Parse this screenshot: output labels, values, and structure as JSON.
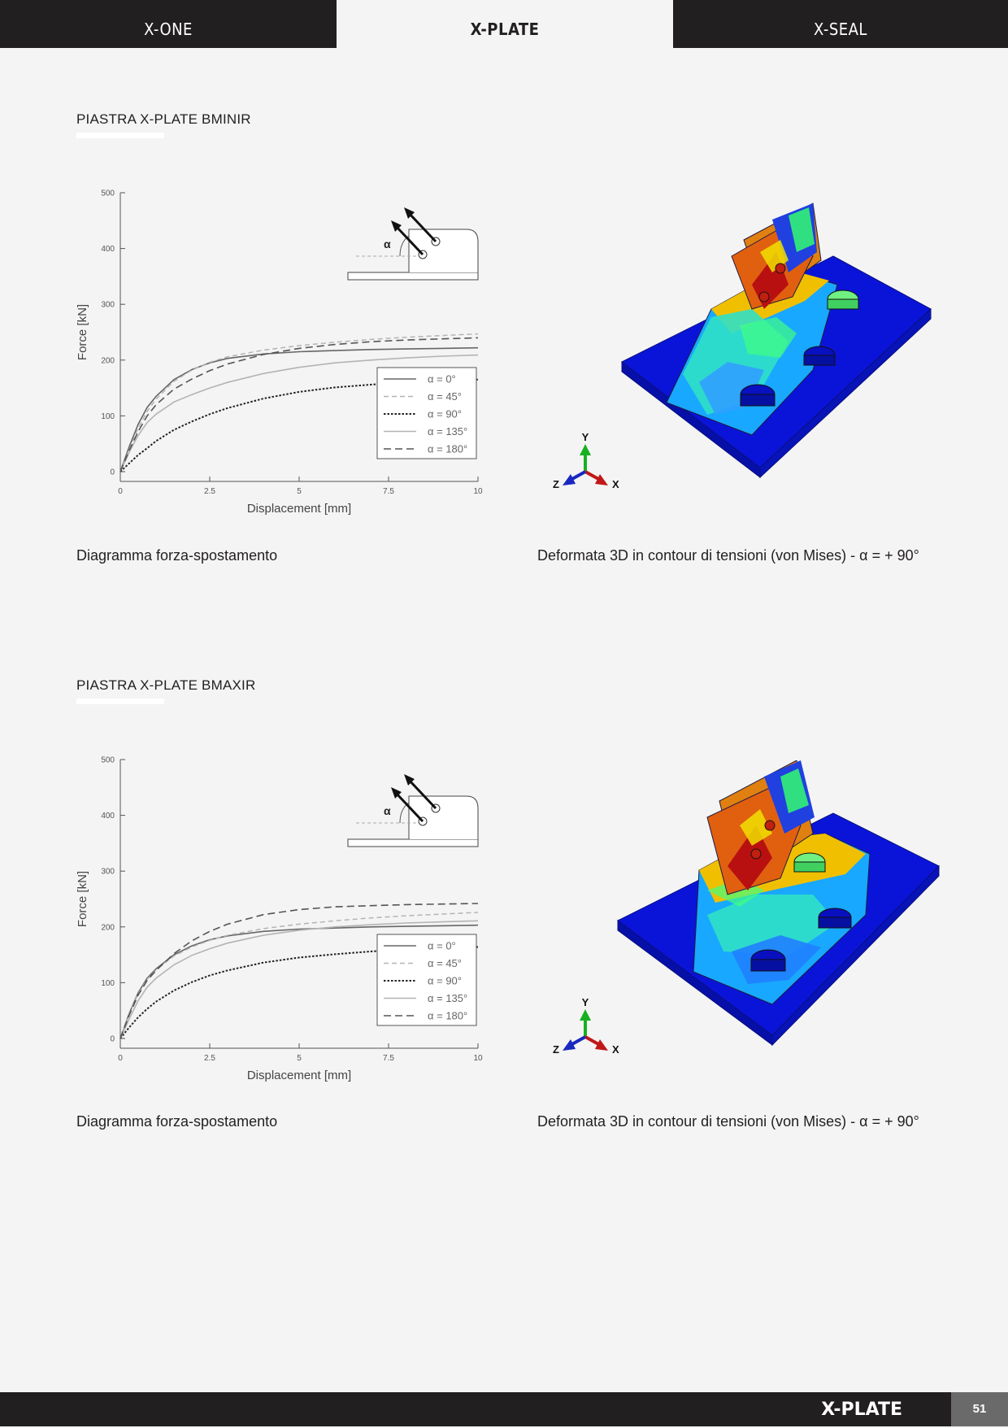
{
  "tabs": [
    {
      "label": "X-ONE",
      "active": false
    },
    {
      "label": "X-PLATE",
      "active": true
    },
    {
      "label": "X-SEAL",
      "active": false
    }
  ],
  "sections": [
    {
      "title": "PIASTRA X-PLATE BMINIR",
      "chart_caption": "Diagramma forza-spostamento",
      "fem_caption": "Deformata 3D in contour di tensioni (von Mises) - α = + 90°",
      "angle_label": "α",
      "axis_letters": {
        "x": "X",
        "y": "Y",
        "z": "Z"
      },
      "chart_data": {
        "type": "line",
        "xlabel": "Displacement [mm]",
        "ylabel": "Force [kN]",
        "xlim": [
          0,
          10
        ],
        "ylim": [
          0,
          500
        ],
        "xticks": [
          "0",
          "2.5",
          "5",
          "7.5",
          "10"
        ],
        "yticks": [
          "0",
          "100",
          "200",
          "300",
          "400",
          "500"
        ],
        "legend_position": "bottom-right",
        "series": [
          {
            "name": "α = 0°",
            "style": "solid-dark",
            "x": [
              0,
              0.25,
              0.5,
              0.75,
              1,
              1.5,
              2,
              2.5,
              3,
              4,
              5,
              6,
              7,
              8,
              9,
              10
            ],
            "y": [
              0,
              45,
              85,
              115,
              135,
              165,
              183,
              195,
              203,
              211,
              215,
              217,
              219,
              220,
              221,
              222
            ]
          },
          {
            "name": "α = 45°",
            "style": "dashed-light",
            "x": [
              0,
              0.25,
              0.5,
              0.75,
              1,
              1.5,
              2,
              2.5,
              3,
              4,
              5,
              6,
              7,
              8,
              9,
              10
            ],
            "y": [
              0,
              40,
              78,
              108,
              130,
              162,
              182,
              196,
              206,
              218,
              226,
              232,
              237,
              241,
              244,
              247
            ]
          },
          {
            "name": "α = 90°",
            "style": "dotted-black",
            "x": [
              0,
              0.25,
              0.5,
              0.75,
              1,
              1.5,
              2,
              2.5,
              3,
              4,
              5,
              6,
              7,
              8,
              9,
              10
            ],
            "y": [
              0,
              15,
              30,
              42,
              55,
              75,
              90,
              103,
              114,
              131,
              143,
              151,
              156,
              160,
              163,
              165
            ]
          },
          {
            "name": "α = 135°",
            "style": "solid-light",
            "x": [
              0,
              0.25,
              0.5,
              0.75,
              1,
              1.5,
              2,
              2.5,
              3,
              4,
              5,
              6,
              7,
              8,
              9,
              10
            ],
            "y": [
              0,
              35,
              65,
              88,
              103,
              125,
              138,
              150,
              160,
              176,
              187,
              195,
              200,
              204,
              207,
              209
            ]
          },
          {
            "name": "α = 180°",
            "style": "dashed-dark",
            "x": [
              0,
              0.25,
              0.5,
              0.75,
              1,
              1.5,
              2,
              2.5,
              3,
              4,
              5,
              6,
              7,
              8,
              9,
              10
            ],
            "y": [
              0,
              38,
              72,
              100,
              120,
              148,
              166,
              181,
              193,
              210,
              221,
              228,
              233,
              236,
              238,
              240
            ]
          }
        ]
      }
    },
    {
      "title": "PIASTRA X-PLATE BMAXIR",
      "chart_caption": "Diagramma forza-spostamento",
      "fem_caption": "Deformata 3D in contour di tensioni (von Mises) - α = + 90°",
      "angle_label": "α",
      "axis_letters": {
        "x": "X",
        "y": "Y",
        "z": "Z"
      },
      "chart_data": {
        "type": "line",
        "xlabel": "Displacement [mm]",
        "ylabel": "Force [kN]",
        "xlim": [
          0,
          10
        ],
        "ylim": [
          0,
          500
        ],
        "xticks": [
          "0",
          "2.5",
          "5",
          "7.5",
          "10"
        ],
        "yticks": [
          "0",
          "100",
          "200",
          "300",
          "400",
          "500"
        ],
        "legend_position": "bottom-right",
        "series": [
          {
            "name": "α = 0°",
            "style": "solid-dark",
            "x": [
              0,
              0.25,
              0.5,
              0.75,
              1,
              1.5,
              2,
              2.5,
              3,
              4,
              5,
              6,
              7,
              8,
              9,
              10
            ],
            "y": [
              0,
              45,
              82,
              108,
              125,
              150,
              166,
              177,
              184,
              192,
              196,
              198,
              200,
              201,
              202,
              203
            ]
          },
          {
            "name": "α = 45°",
            "style": "dashed-light",
            "x": [
              0,
              0.25,
              0.5,
              0.75,
              1,
              1.5,
              2,
              2.5,
              3,
              4,
              5,
              6,
              7,
              8,
              9,
              10
            ],
            "y": [
              0,
              44,
              80,
              106,
              123,
              148,
              164,
              176,
              185,
              197,
              205,
              211,
              216,
              220,
              223,
              226
            ]
          },
          {
            "name": "α = 90°",
            "style": "dotted-black",
            "x": [
              0,
              0.25,
              0.5,
              0.75,
              1,
              1.5,
              2,
              2.5,
              3,
              4,
              5,
              6,
              7,
              8,
              9,
              10
            ],
            "y": [
              0,
              20,
              38,
              53,
              66,
              86,
              101,
              113,
              122,
              136,
              145,
              151,
              156,
              159,
              162,
              164
            ]
          },
          {
            "name": "α = 135°",
            "style": "solid-light",
            "x": [
              0,
              0.25,
              0.5,
              0.75,
              1,
              1.5,
              2,
              2.5,
              3,
              4,
              5,
              6,
              7,
              8,
              9,
              10
            ],
            "y": [
              0,
              35,
              68,
              92,
              108,
              132,
              149,
              161,
              171,
              185,
              194,
              200,
              204,
              207,
              209,
              211
            ]
          },
          {
            "name": "α = 180°",
            "style": "dashed-dark",
            "x": [
              0,
              0.25,
              0.5,
              0.75,
              1,
              1.5,
              2,
              2.5,
              3,
              4,
              5,
              6,
              7,
              8,
              9,
              10
            ],
            "y": [
              0,
              42,
              78,
              104,
              122,
              152,
              175,
              192,
              205,
              222,
              231,
              236,
              238,
              240,
              241,
              242
            ]
          }
        ]
      }
    }
  ],
  "footer": {
    "title": "X-PLATE",
    "page_number": "51"
  }
}
